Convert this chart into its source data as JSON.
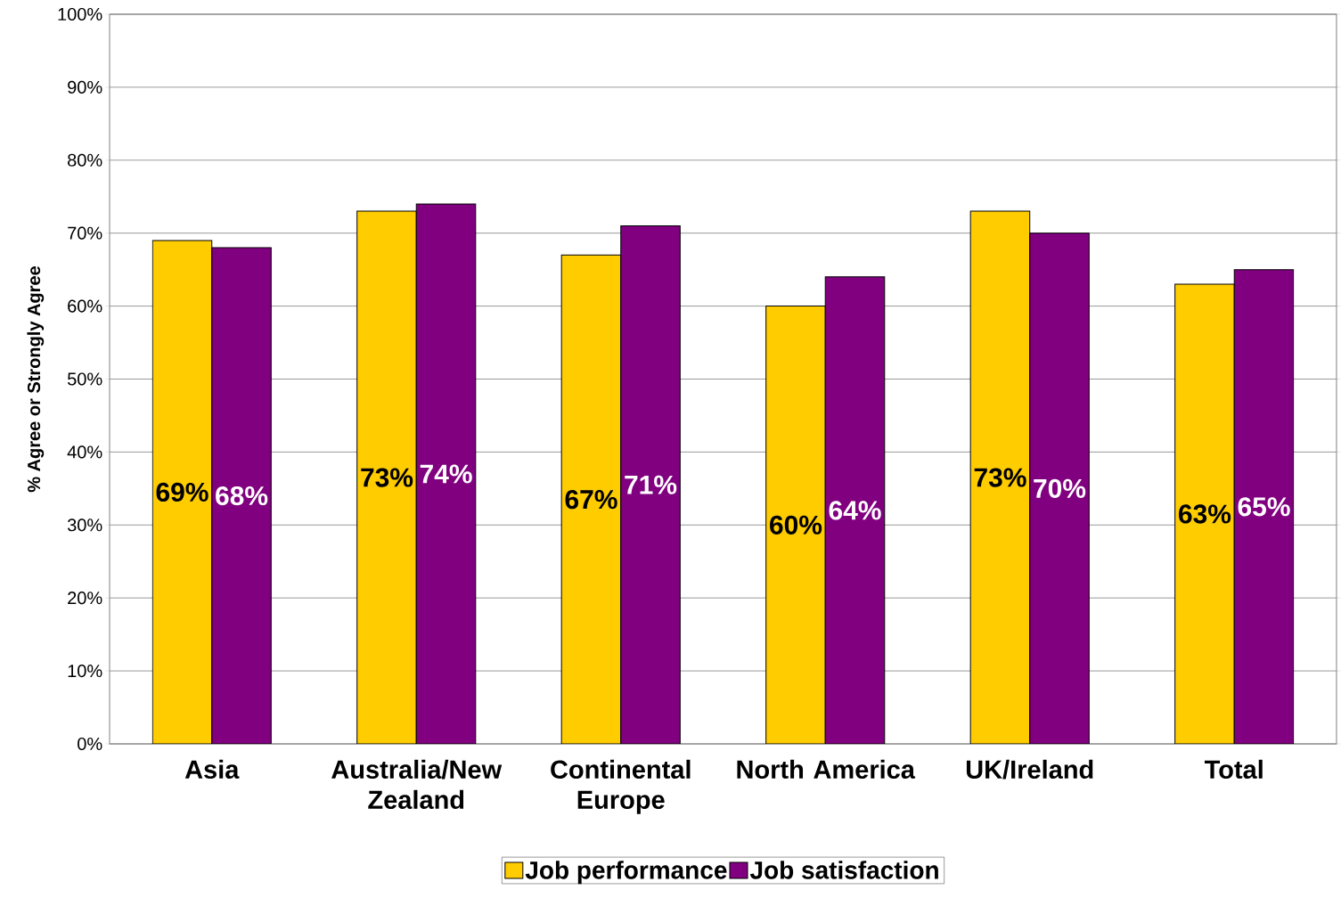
{
  "chart_data": {
    "type": "bar",
    "ylabel": "% Agree or Strongly Agree",
    "categories": [
      "Asia",
      "Australia/New Zealand",
      "Continental Europe",
      "North America",
      "UK/Ireland",
      "Total"
    ],
    "series": [
      {
        "name": "Job performance",
        "color": "#ffcc00",
        "values": [
          69,
          73,
          67,
          60,
          73,
          63
        ],
        "value_labels": [
          "69%",
          "73%",
          "67%",
          "60%",
          "73%",
          "63%"
        ]
      },
      {
        "name": "Job satisfaction",
        "color": "#800080",
        "values": [
          68,
          74,
          71,
          64,
          70,
          65
        ],
        "value_labels": [
          "68%",
          "74%",
          "71%",
          "64%",
          "70%",
          "65%"
        ]
      }
    ],
    "ylim": [
      0,
      100
    ],
    "yticks": [
      {
        "value": 0,
        "label": "0%"
      },
      {
        "value": 10,
        "label": "10%"
      },
      {
        "value": 20,
        "label": "20%"
      },
      {
        "value": 30,
        "label": "30%"
      },
      {
        "value": 40,
        "label": "40%"
      },
      {
        "value": 50,
        "label": "50%"
      },
      {
        "value": 60,
        "label": "60%"
      },
      {
        "value": 70,
        "label": "70%"
      },
      {
        "value": 80,
        "label": "80%"
      },
      {
        "value": 90,
        "label": "90%"
      },
      {
        "value": 100,
        "label": "100%"
      }
    ],
    "grid": "y",
    "legend": "bottom"
  }
}
